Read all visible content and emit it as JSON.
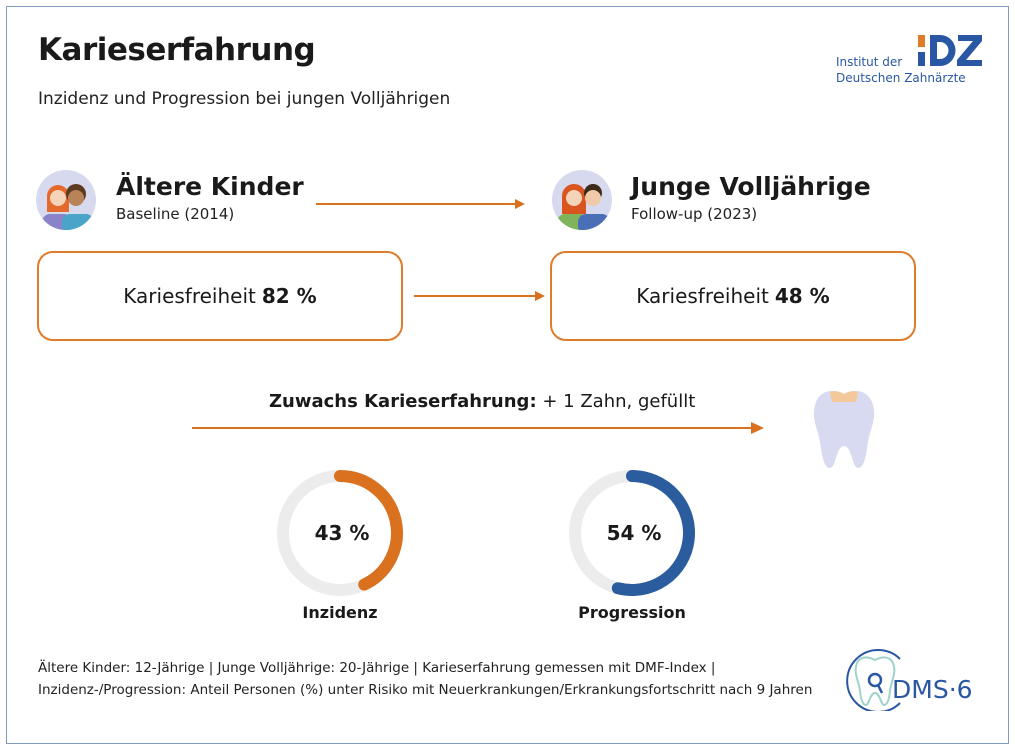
{
  "header": {
    "title": "Karieserfahrung",
    "subtitle": "Inzidenz und Progression bei jungen Volljährigen"
  },
  "logo_idz": {
    "text": "Institut der Deutschen Zahnärzte",
    "line1": "Institut der",
    "line2": "Deutschen Zahnärzte",
    "mark": "IDZ"
  },
  "groups": [
    {
      "title": "Ältere Kinder",
      "subtitle": "Baseline (2014)",
      "metric_label": "Kariesfreiheit",
      "metric_value": "82 %"
    },
    {
      "title": "Junge Volljährige",
      "subtitle": "Follow-up (2023)",
      "metric_label": "Kariesfreiheit",
      "metric_value": "48 %"
    }
  ],
  "growth": {
    "label": "Zuwachs Karieserfahrung:",
    "value": "+ 1 Zahn, gefüllt"
  },
  "gauges": [
    {
      "label": "Inzidenz",
      "value_text": "43 %",
      "percent": 43,
      "color": "#d9711f"
    },
    {
      "label": "Progression",
      "value_text": "54 %",
      "percent": 54,
      "color": "#2b5c9e"
    }
  ],
  "footnote": {
    "line1": "Ältere Kinder: 12-Jährige | Junge Volljährige: 20-Jährige | Karieserfahrung gemessen mit DMF-Index |",
    "line2": "Inzidenz-/Progression: Anteil Personen (%) unter Risiko mit Neuerkrankungen/Erkrankungsfortschritt nach 9 Jahren"
  },
  "logo_dms": {
    "text": "DMS·6"
  },
  "colors": {
    "accent": "#e07b2a",
    "blue": "#2a57a3",
    "track": "#ececec"
  }
}
